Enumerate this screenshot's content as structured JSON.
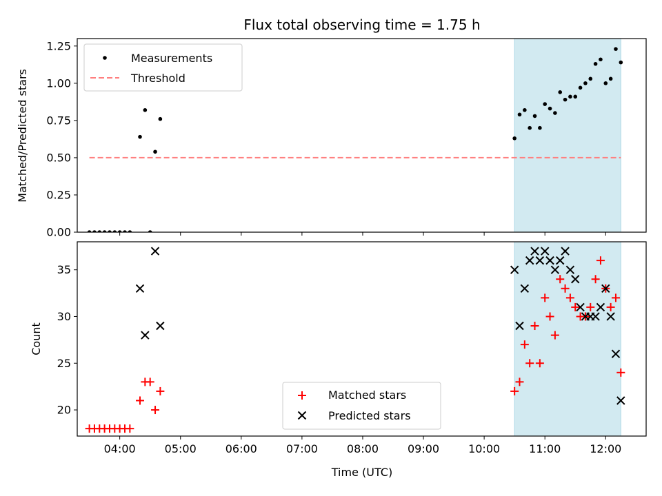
{
  "title": "Flux total observing time = 1.75 h",
  "chart_data": [
    {
      "type": "scatter",
      "ylabel": "Matched/Predicted stars",
      "xlabel": "",
      "xlim": [
        "03:18",
        "12:40"
      ],
      "ylim": [
        0,
        1.3
      ],
      "yticks": [
        0.0,
        0.25,
        0.5,
        0.75,
        1.0,
        1.25
      ],
      "ytick_labels": [
        "0.00",
        "0.25",
        "0.50",
        "0.75",
        "1.00",
        "1.25"
      ],
      "legend_position": "upper-left",
      "shaded_span": [
        "10:30",
        "12:15"
      ],
      "shade_color": "#add8e6",
      "series": [
        {
          "name": "Measurements",
          "kind": "points",
          "color": "#000000",
          "x": [
            "03:30",
            "03:35",
            "03:40",
            "03:45",
            "03:50",
            "03:55",
            "04:00",
            "04:05",
            "04:10",
            "04:20",
            "04:25",
            "04:30",
            "04:35",
            "04:40",
            "10:30",
            "10:35",
            "10:40",
            "10:45",
            "10:50",
            "10:55",
            "11:00",
            "11:05",
            "11:10",
            "11:15",
            "11:20",
            "11:25",
            "11:30",
            "11:35",
            "11:40",
            "11:45",
            "11:50",
            "11:55",
            "12:00",
            "12:05",
            "12:10",
            "12:15"
          ],
          "y": [
            0,
            0,
            0,
            0,
            0,
            0,
            0,
            0,
            0,
            0.64,
            0.82,
            0,
            0.54,
            0.76,
            0.63,
            0.79,
            0.82,
            0.7,
            0.78,
            0.7,
            0.86,
            0.83,
            0.8,
            0.94,
            0.89,
            0.91,
            0.91,
            0.97,
            1.0,
            1.03,
            1.13,
            1.16,
            1.0,
            1.03,
            1.23,
            1.14
          ]
        },
        {
          "name": "Threshold",
          "kind": "dashed-line",
          "color": "#ff7f7f",
          "x": [
            "03:30",
            "12:15"
          ],
          "y": [
            0.5,
            0.5
          ]
        }
      ]
    },
    {
      "type": "scatter",
      "ylabel": "Count",
      "xlabel": "Time (UTC)",
      "xlim": [
        "03:18",
        "12:40"
      ],
      "ylim": [
        17.2,
        38.0
      ],
      "yticks": [
        20,
        25,
        30,
        35
      ],
      "ytick_labels": [
        "20",
        "25",
        "30",
        "35"
      ],
      "xticks": [
        "04:00",
        "05:00",
        "06:00",
        "07:00",
        "08:00",
        "09:00",
        "10:00",
        "11:00",
        "12:00"
      ],
      "xtick_labels": [
        "04:00",
        "05:00",
        "06:00",
        "07:00",
        "08:00",
        "09:00",
        "10:00",
        "11:00",
        "12:00"
      ],
      "legend_position": "lower-center",
      "shaded_span": [
        "10:30",
        "12:15"
      ],
      "shade_color": "#add8e6",
      "series": [
        {
          "name": "Matched stars",
          "kind": "plus",
          "color": "#ff0000",
          "x": [
            "03:30",
            "03:35",
            "03:40",
            "03:45",
            "03:50",
            "03:55",
            "04:00",
            "04:05",
            "04:10",
            "04:20",
            "04:25",
            "04:30",
            "04:35",
            "04:40",
            "10:30",
            "10:35",
            "10:40",
            "10:45",
            "10:50",
            "10:55",
            "11:00",
            "11:05",
            "11:10",
            "11:15",
            "11:20",
            "11:25",
            "11:30",
            "11:35",
            "11:40",
            "11:45",
            "11:50",
            "11:55",
            "12:00",
            "12:05",
            "12:10",
            "12:15"
          ],
          "y": [
            18,
            18,
            18,
            18,
            18,
            18,
            18,
            18,
            18,
            21,
            23,
            23,
            20,
            22,
            22,
            23,
            27,
            25,
            29,
            25,
            32,
            30,
            28,
            34,
            33,
            32,
            31,
            30,
            30,
            31,
            34,
            36,
            33,
            31,
            32,
            24
          ]
        },
        {
          "name": "Predicted stars",
          "kind": "x",
          "color": "#000000",
          "x": [
            "04:20",
            "04:25",
            "04:35",
            "04:40",
            "10:30",
            "10:35",
            "10:40",
            "10:45",
            "10:50",
            "10:55",
            "11:00",
            "11:05",
            "11:10",
            "11:15",
            "11:20",
            "11:25",
            "11:30",
            "11:35",
            "11:40",
            "11:45",
            "11:50",
            "11:55",
            "12:00",
            "12:05",
            "12:10",
            "12:15"
          ],
          "y": [
            33,
            28,
            37,
            29,
            35,
            29,
            33,
            36,
            37,
            36,
            37,
            36,
            35,
            36,
            37,
            35,
            34,
            31,
            30,
            30,
            30,
            31,
            33,
            30,
            26,
            21
          ]
        }
      ]
    }
  ]
}
